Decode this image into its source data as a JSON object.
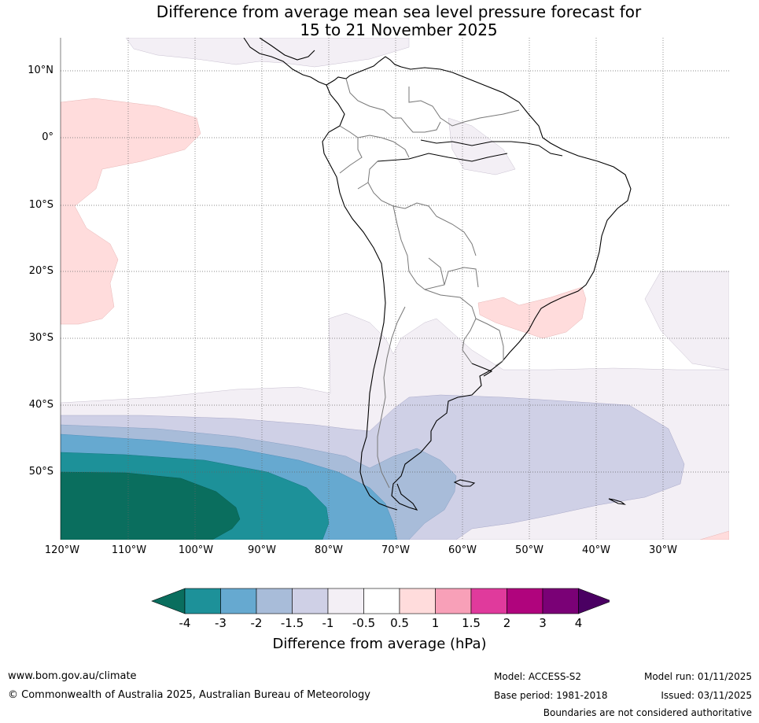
{
  "title": {
    "line1": "Difference from average mean sea level pressure forecast for",
    "line2": "15 to 21 November 2025"
  },
  "axes": {
    "lat_labels": [
      "10°N",
      "0°",
      "10°S",
      "20°S",
      "30°S",
      "40°S",
      "50°S"
    ],
    "lon_labels": [
      "120°W",
      "110°W",
      "100°W",
      "90°W",
      "80°W",
      "70°W",
      "60°W",
      "50°W",
      "40°W",
      "30°W"
    ]
  },
  "colorbar": {
    "labels": [
      "-4",
      "-3",
      "-2",
      "-1.5",
      "-1",
      "-0.5",
      "0.5",
      "1",
      "1.5",
      "2",
      "3",
      "4"
    ],
    "colors": [
      "#0a6e5e",
      "#1d9199",
      "#66a9d0",
      "#a8bcd9",
      "#cfd0e6",
      "#f3eff5",
      "#ffffff",
      "#ffdcdc",
      "#f8a0b8",
      "#e03a9c",
      "#b0047d",
      "#7a0176",
      "#4a0062"
    ],
    "title": "Difference from average (hPa)"
  },
  "footer": {
    "url": "www.bom.gov.au/climate",
    "copyright": "© Commonwealth of Australia 2025, Australian Bureau of Meteorology",
    "model": "Model: ACCESS-S2",
    "base_period": "Base period: 1981-2018",
    "model_run": "Model run: 01/11/2025",
    "issued": "Issued: 03/11/2025",
    "disclaimer": "Boundaries are not considered authoritative"
  }
}
